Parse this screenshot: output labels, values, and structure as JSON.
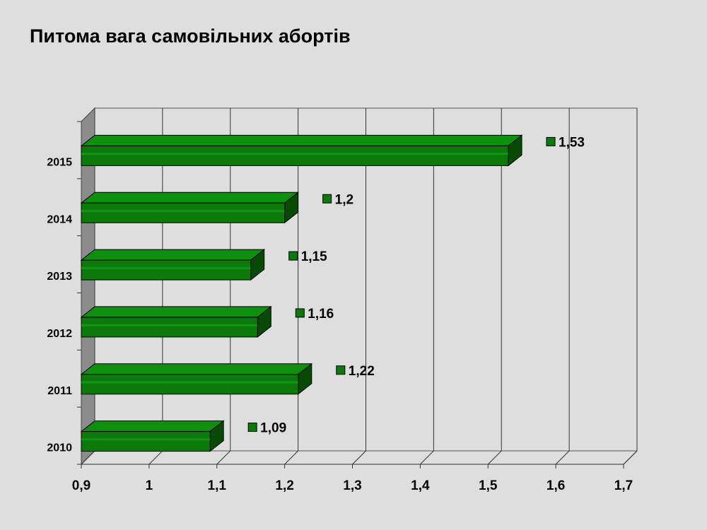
{
  "slide": {
    "title": "Питома вага самовільних абортів"
  },
  "colors": {
    "background": "#dedede",
    "bar_front": "#0b7a0b",
    "bar_top": "#0f8f0f",
    "bar_side": "#064a06",
    "wall": "#8c8c8c"
  },
  "chart_data": {
    "type": "bar",
    "orientation": "horizontal",
    "style": "3d",
    "categories": [
      "2010",
      "2011",
      "2012",
      "2013",
      "2014",
      "2015"
    ],
    "values": [
      1.09,
      1.22,
      1.16,
      1.15,
      1.2,
      1.53
    ],
    "data_labels": [
      "1,09",
      "1,22",
      "1,16",
      "1,15",
      "1,2",
      "1,53"
    ],
    "x_ticks": [
      0.9,
      1,
      1.1,
      1.2,
      1.3,
      1.4,
      1.5,
      1.6,
      1.7
    ],
    "x_tick_labels": [
      "0,9",
      "1",
      "1,1",
      "1,2",
      "1,3",
      "1,4",
      "1,5",
      "1,6",
      "1,7"
    ],
    "xlim": [
      0.9,
      1.7
    ],
    "grid": true,
    "legend": "none"
  }
}
